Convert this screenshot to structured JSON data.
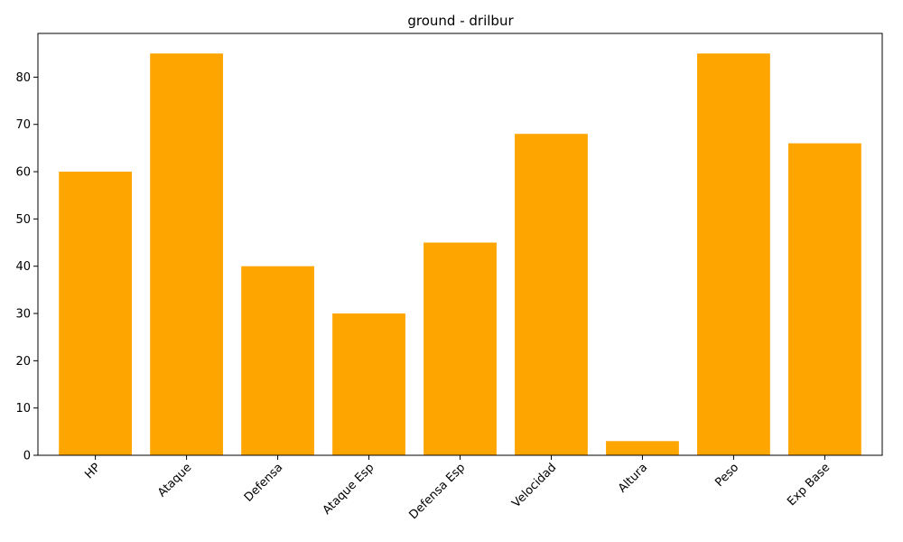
{
  "chart_data": {
    "type": "bar",
    "title": "ground - drilbur",
    "xlabel": "",
    "ylabel": "",
    "categories": [
      "HP",
      "Ataque",
      "Defensa",
      "Ataque Esp",
      "Defensa Esp",
      "Velocidad",
      "Altura",
      "Peso",
      "Exp Base"
    ],
    "values": [
      60,
      85,
      40,
      30,
      45,
      68,
      3,
      85,
      66
    ],
    "ylim": [
      0,
      89.25
    ],
    "yticks": [
      "0",
      "10",
      "20",
      "30",
      "40",
      "50",
      "60",
      "70",
      "80"
    ],
    "bar_color": "#ffa500",
    "grid": false,
    "legend": "none"
  }
}
